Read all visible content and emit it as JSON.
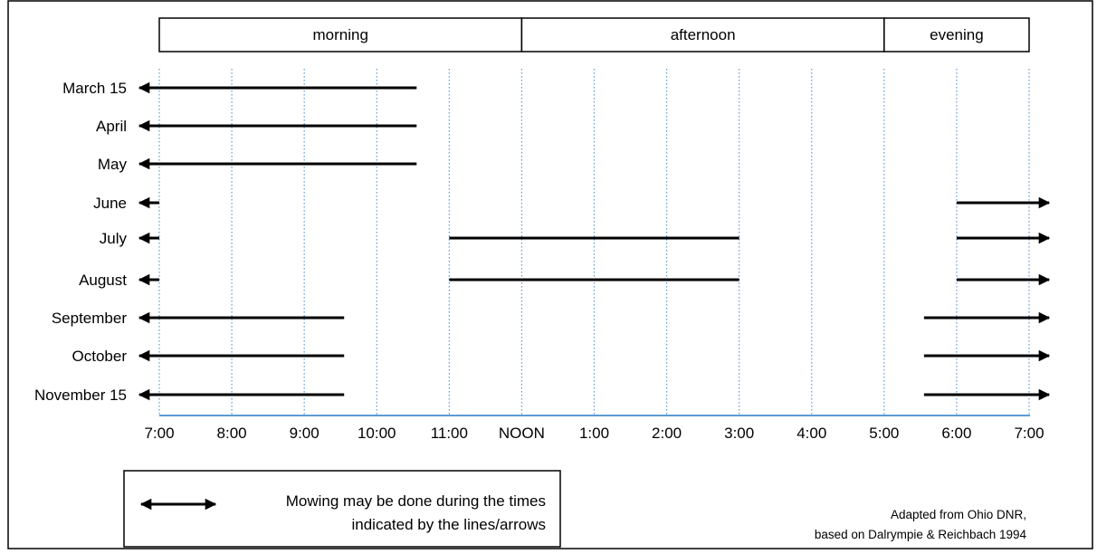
{
  "chart_data": {
    "type": "timeline",
    "periods": [
      {
        "label": "morning",
        "start": 7,
        "end": 12
      },
      {
        "label": "afternoon",
        "start": 12,
        "end": 17
      },
      {
        "label": "evening",
        "start": 17,
        "end": 19
      }
    ],
    "x_ticks": [
      {
        "value": 7,
        "label": "7:00"
      },
      {
        "value": 8,
        "label": "8:00"
      },
      {
        "value": 9,
        "label": "9:00"
      },
      {
        "value": 10,
        "label": "10:00"
      },
      {
        "value": 11,
        "label": "11:00"
      },
      {
        "value": 12,
        "label": "NOON"
      },
      {
        "value": 13,
        "label": "1:00"
      },
      {
        "value": 14,
        "label": "2:00"
      },
      {
        "value": 15,
        "label": "3:00"
      },
      {
        "value": 16,
        "label": "4:00"
      },
      {
        "value": 17,
        "label": "5:00"
      },
      {
        "value": 18,
        "label": "6:00"
      },
      {
        "value": 19,
        "label": "7:00"
      }
    ],
    "xlim": [
      7,
      19
    ],
    "grid": true,
    "rows": [
      {
        "label": "March 15",
        "intervals": [
          {
            "start": 7,
            "end": 10.55,
            "arrow_left": true
          }
        ]
      },
      {
        "label": "April",
        "intervals": [
          {
            "start": 7,
            "end": 10.55,
            "arrow_left": true
          }
        ]
      },
      {
        "label": "May",
        "intervals": [
          {
            "start": 7,
            "end": 10.55,
            "arrow_left": true
          }
        ]
      },
      {
        "label": "June",
        "intervals": [
          {
            "start": 7,
            "end": 7,
            "arrow_left": true
          },
          {
            "start": 18,
            "end": 19,
            "arrow_right": true
          }
        ]
      },
      {
        "label": "July",
        "intervals": [
          {
            "start": 7,
            "end": 7,
            "arrow_left": true
          },
          {
            "start": 11,
            "end": 15
          },
          {
            "start": 18,
            "end": 19,
            "arrow_right": true
          }
        ]
      },
      {
        "label": "August",
        "intervals": [
          {
            "start": 7,
            "end": 7,
            "arrow_left": true
          },
          {
            "start": 11,
            "end": 15
          },
          {
            "start": 18,
            "end": 19,
            "arrow_right": true
          }
        ]
      },
      {
        "label": "September",
        "intervals": [
          {
            "start": 7,
            "end": 9.55,
            "arrow_left": true
          },
          {
            "start": 17.55,
            "end": 19,
            "arrow_right": true
          }
        ]
      },
      {
        "label": "October",
        "intervals": [
          {
            "start": 7,
            "end": 9.55,
            "arrow_left": true
          },
          {
            "start": 17.55,
            "end": 19,
            "arrow_right": true
          }
        ]
      },
      {
        "label": "November 15",
        "intervals": [
          {
            "start": 7,
            "end": 9.55,
            "arrow_left": true
          },
          {
            "start": 17.55,
            "end": 19,
            "arrow_right": true
          }
        ]
      }
    ],
    "legend": {
      "lines": [
        "Mowing may be done during  the times",
        "indicated by the lines/arrows"
      ]
    },
    "credit": {
      "lines": [
        "Adapted from Ohio DNR,",
        "based on Dalrympie & Reichbach 1994"
      ]
    },
    "colors": {
      "grid": "#5b9bd5",
      "axis": "#5b9bd5",
      "bars": "#000000"
    }
  }
}
